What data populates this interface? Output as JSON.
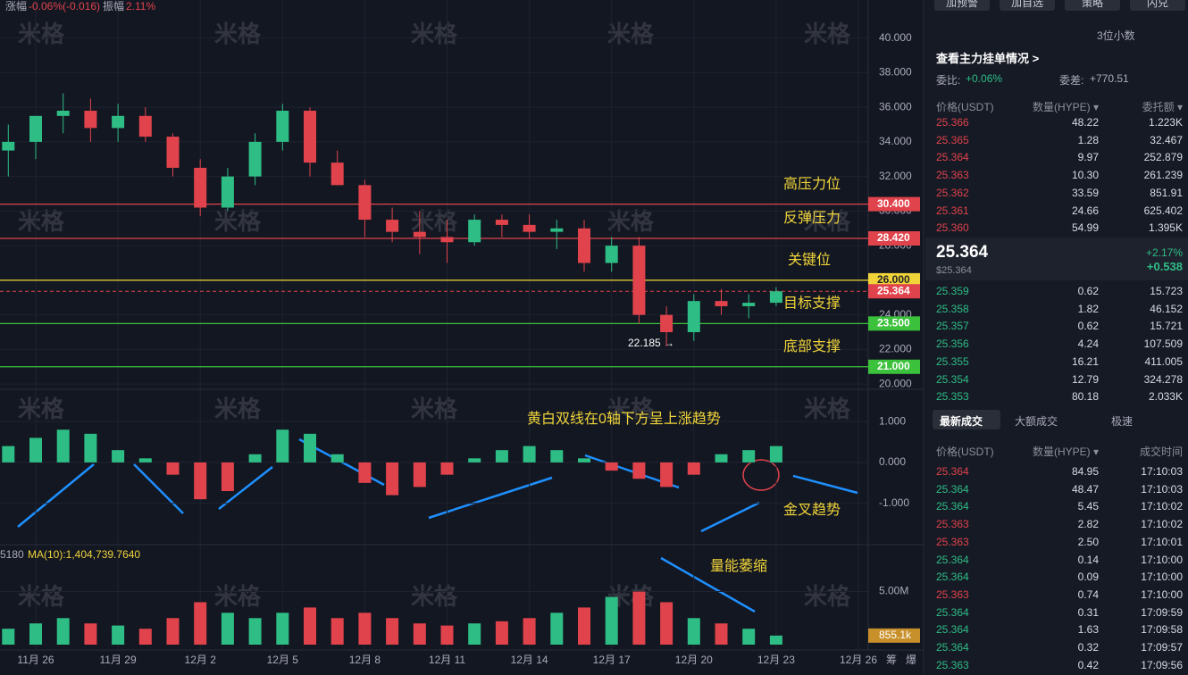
{
  "header": {
    "change_label": "涨幅",
    "change": "-0.06%(-0.016)",
    "amp_label": "振幅",
    "amp": "2.11%"
  },
  "watermark": "米格",
  "chart": {
    "type": "candlestick",
    "ylim": [
      19.75,
      42.2
    ],
    "yticks": [
      {
        "value": 20,
        "label": "20.000"
      },
      {
        "value": 22,
        "label": "22.000"
      },
      {
        "value": 24,
        "label": "24.000"
      },
      {
        "value": 26,
        "label": "26.000"
      },
      {
        "value": 28,
        "label": "28.000"
      },
      {
        "value": 30,
        "label": "30.000"
      },
      {
        "value": 32,
        "label": "32.000"
      },
      {
        "value": 34,
        "label": "34.000"
      },
      {
        "value": 36,
        "label": "36.000"
      },
      {
        "value": 38,
        "label": "38.000"
      },
      {
        "value": 40,
        "label": "40.000"
      }
    ],
    "candles": [
      [
        33.5,
        35,
        32,
        34
      ],
      [
        34,
        35.5,
        33,
        35.5
      ],
      [
        35.5,
        36.8,
        34.5,
        35.8
      ],
      [
        35.8,
        36.5,
        34,
        34.8
      ],
      [
        34.8,
        36.2,
        34,
        35.5
      ],
      [
        35.5,
        36,
        34,
        34.3
      ],
      [
        34.3,
        34.5,
        32,
        32.5
      ],
      [
        32.5,
        33,
        29.7,
        30.2
      ],
      [
        30.2,
        32.5,
        30,
        32
      ],
      [
        32,
        34.5,
        31.5,
        34
      ],
      [
        34,
        36.2,
        33.5,
        35.8
      ],
      [
        35.8,
        36,
        32,
        32.8
      ],
      [
        32.8,
        33.5,
        31.5,
        31.5
      ],
      [
        31.5,
        31.8,
        28.5,
        29.5
      ],
      [
        29.5,
        30.2,
        28.2,
        28.8
      ],
      [
        28.8,
        30,
        27.5,
        28.5
      ],
      [
        28.5,
        29.5,
        27,
        28.2
      ],
      [
        28.2,
        29.8,
        28,
        29.5
      ],
      [
        29.5,
        29.8,
        28.5,
        29.2
      ],
      [
        29.2,
        29.8,
        28.4,
        28.8
      ],
      [
        28.8,
        29.5,
        27.8,
        29
      ],
      [
        29,
        29.5,
        26.5,
        27
      ],
      [
        27,
        28.5,
        26.5,
        28
      ],
      [
        28,
        28.5,
        23.5,
        24
      ],
      [
        24,
        24.5,
        22.185,
        23
      ],
      [
        23,
        25.2,
        22.5,
        24.8
      ],
      [
        24.8,
        25.5,
        24,
        24.5
      ],
      [
        24.5,
        25.2,
        23.8,
        24.7
      ],
      [
        24.7,
        25.6,
        24.5,
        25.364
      ]
    ],
    "levels": [
      {
        "value": 30.4,
        "label": "30.400",
        "color": "#e0434b",
        "text": "高压力位"
      },
      {
        "value": 28.42,
        "label": "28.420",
        "color": "#e0434b",
        "text": "反弹压力"
      },
      {
        "value": 26,
        "label": "26.000",
        "color": "#f0d43a",
        "text": "关键位"
      },
      {
        "value": 23.5,
        "label": "23.500",
        "color": "#3cc13c",
        "text": "目标支撑"
      },
      {
        "value": 21,
        "label": "21.000",
        "color": "#3cc13c",
        "text": "底部支撑"
      }
    ],
    "current": {
      "value": 25.364,
      "label": "25.364"
    },
    "low_note": "22.185 →",
    "macd": {
      "ylim": [
        -1.9,
        1.7
      ],
      "yticks": [
        {
          "value": 1,
          "label": "1.000"
        },
        {
          "value": 0,
          "label": "0.000"
        },
        {
          "value": -1,
          "label": "-1.000"
        }
      ],
      "values": [
        0.4,
        0.6,
        0.8,
        0.7,
        0.3,
        0.1,
        -0.3,
        -0.9,
        -0.7,
        0.2,
        0.8,
        0.7,
        0.2,
        -0.5,
        -0.8,
        -0.6,
        -0.3,
        0.1,
        0.3,
        0.4,
        0.3,
        0.1,
        -0.2,
        -0.4,
        -0.6,
        -0.3,
        0.2,
        0.3,
        0.4
      ],
      "note1": "黄白双线在0轴下方呈上涨趋势",
      "note2": "金叉趋势"
    },
    "volume": {
      "ylim": [
        0,
        9000000
      ],
      "yticks": [
        {
          "value": 5000000,
          "label": "5.00M"
        }
      ],
      "ma_text": "MA(10):1,404,739.7640",
      "left_text": "5180",
      "values": [
        1500000,
        2000000,
        2500000,
        2000000,
        1800000,
        1500000,
        2500000,
        4000000,
        3000000,
        2500000,
        3000000,
        3500000,
        2500000,
        3000000,
        2500000,
        2000000,
        1800000,
        2000000,
        2200000,
        2500000,
        3000000,
        3500000,
        4500000,
        5000000,
        4000000,
        2500000,
        2000000,
        1500000,
        855100
      ],
      "last": {
        "value": 855100,
        "label": "855.1k"
      },
      "note": "量能萎缩"
    },
    "x_labels": [
      "11月 26",
      "11月 29",
      "12月 2",
      "12月 5",
      "12月 8",
      "12月 11",
      "12月 14",
      "12月 17",
      "12月 20",
      "12月 23",
      "12月 26"
    ],
    "x_extra": [
      "筹",
      "爆"
    ]
  },
  "panel": {
    "buttons": [
      "加预警",
      "加自选",
      "策略",
      "闪兑"
    ],
    "decimals": "3位小数",
    "main_orders": "查看主力挂单情况 >",
    "ratio_label": "委比:",
    "ratio": "+0.06%",
    "diff_label": "委差:",
    "diff": "+770.51",
    "book_headers": [
      "价格(USDT)",
      "数量(HYPE) ▾",
      "委托额 ▾"
    ],
    "asks": [
      [
        "25.366",
        "48.22",
        "1.223K"
      ],
      [
        "25.365",
        "1.28",
        "32.467"
      ],
      [
        "25.364",
        "9.97",
        "252.879"
      ],
      [
        "25.363",
        "10.30",
        "261.239"
      ],
      [
        "25.362",
        "33.59",
        "851.91"
      ],
      [
        "25.361",
        "24.66",
        "625.402"
      ],
      [
        "25.360",
        "54.99",
        "1.395K"
      ]
    ],
    "last_price": "25.364",
    "last_usd": "$25.364",
    "pct": "+2.17%",
    "chg": "+0.538",
    "bids": [
      [
        "25.359",
        "0.62",
        "15.723"
      ],
      [
        "25.358",
        "1.82",
        "46.152"
      ],
      [
        "25.357",
        "0.62",
        "15.721"
      ],
      [
        "25.356",
        "4.24",
        "107.509"
      ],
      [
        "25.355",
        "16.21",
        "411.005"
      ],
      [
        "25.354",
        "12.79",
        "324.278"
      ],
      [
        "25.353",
        "80.18",
        "2.033K"
      ]
    ],
    "tabs": [
      "最新成交",
      "大额成交",
      "极速"
    ],
    "trade_headers": [
      "价格(USDT)",
      "数量(HYPE) ▾",
      "成交时间"
    ],
    "trades": [
      [
        "25.364",
        "84.95",
        "17:10:03"
      ],
      [
        "25.364",
        "48.47",
        "17:10:03"
      ],
      [
        "25.364",
        "5.45",
        "17:10:02"
      ],
      [
        "25.363",
        "2.82",
        "17:10:02"
      ],
      [
        "25.363",
        "2.50",
        "17:10:01"
      ],
      [
        "25.364",
        "0.14",
        "17:10:00"
      ],
      [
        "25.364",
        "0.09",
        "17:10:00"
      ],
      [
        "25.363",
        "0.74",
        "17:10:00"
      ],
      [
        "25.364",
        "0.31",
        "17:09:59"
      ],
      [
        "25.364",
        "1.63",
        "17:09:58"
      ],
      [
        "25.364",
        "0.32",
        "17:09:57"
      ],
      [
        "25.363",
        "0.42",
        "17:09:56"
      ]
    ],
    "trade_sides": [
      "sell",
      "buy",
      "buy",
      "sell",
      "sell",
      "buy",
      "buy",
      "sell",
      "buy",
      "buy",
      "buy",
      "buy"
    ]
  }
}
